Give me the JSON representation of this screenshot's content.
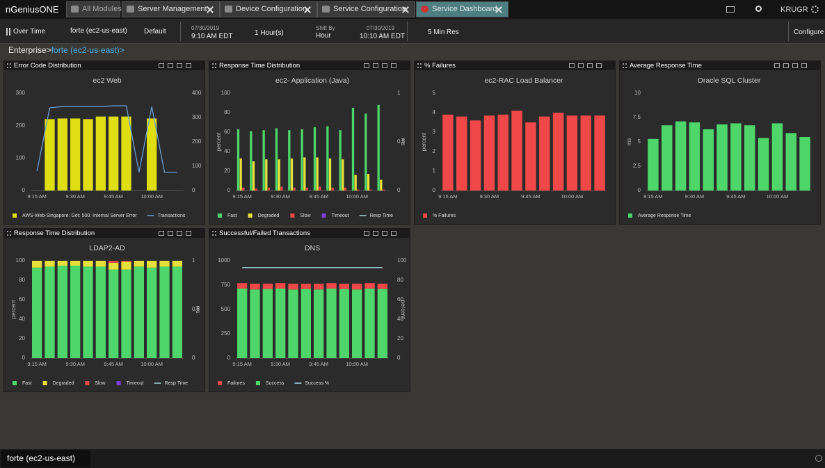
{
  "app": {
    "logo": "nGeniusONE",
    "tabs": [
      "All Modules",
      "Server Management",
      "Device Configuration",
      "Service Configuration",
      "Service Dashboard"
    ],
    "user": "KRUGR"
  },
  "toolbar": {
    "view": "Over Time",
    "scope": "forte (ec2-us-east)",
    "profile": "Default",
    "start_date": "07/30/2019",
    "start_time": "9:10 AM EDT",
    "duration": "1 Hour(s)",
    "shift_label": "Shift By",
    "shift": "Hour",
    "end_date": "07/30/2019",
    "end_time": "10:10 AM EDT",
    "resolution": "5 Min",
    "resolution_label": "Res",
    "configure": "Configure"
  },
  "breadcrumb": {
    "root": "Enterprise>",
    "current": "forte (ec2-us-east)>"
  },
  "panels": [
    {
      "title": "Error Code Distribution",
      "chart_data": {
        "type": "bar",
        "title": "ec2 Web",
        "categories": [
          "9:15 AM",
          null,
          null,
          "9:30 AM",
          null,
          null,
          "9:45 AM",
          null,
          null,
          "10:00 AM",
          null,
          null
        ],
        "series": [
          {
            "name": "AWS-Web-Singapore: Get: 500: Internal Server Error",
            "color": "#dede12",
            "values": [
              null,
              220,
              222,
              222,
              220,
              228,
              228,
              228,
              null,
              222,
              null,
              null
            ]
          },
          {
            "name": "Transactions",
            "color": "#6b9fd4",
            "axis": "y2",
            "values": [
              80,
              340,
              345,
              345,
              345,
              345,
              348,
              348,
              75,
              345,
              75,
              75
            ]
          }
        ],
        "ylim": [
          0,
          300
        ],
        "yticks": [
          0,
          100,
          200,
          300
        ],
        "y2lim": [
          0,
          400
        ],
        "y2ticks": [
          0,
          100,
          200,
          300,
          400
        ],
        "grid": false
      }
    },
    {
      "title": "Response Time Distribution",
      "chart_data": {
        "type": "groupedbar",
        "title": "ec2- Application (Java)",
        "ylabel": "percent",
        "y2label": "ms",
        "categories": [
          "9:15 AM",
          null,
          null,
          "9:30 AM",
          null,
          null,
          "9:45 AM",
          null,
          null,
          "10:00 AM",
          null,
          null
        ],
        "series": [
          {
            "name": "Fast",
            "color": "#4fd66b",
            "values": [
              63,
              61,
              62,
              64,
              62,
              63,
              65,
              66,
              62,
              85,
              79,
              88
            ]
          },
          {
            "name": "Degraded",
            "color": "#e8e03a",
            "values": [
              33,
              30,
              32,
              32,
              33,
              34,
              34,
              33,
              32,
              16,
              17,
              11
            ]
          },
          {
            "name": "Slow",
            "color": "#f04848",
            "values": [
              3,
              2,
              3,
              4,
              3,
              3,
              4,
              3,
              3,
              1,
              1,
              1
            ]
          },
          {
            "name": "Timeout",
            "color": "#7b3fe0",
            "values": [
              0,
              0,
              0,
              0,
              0,
              0,
              0,
              0,
              0,
              0,
              0,
              0
            ]
          },
          {
            "name": "Resp Time",
            "color": "#9fd3d3",
            "axis": "y2",
            "values": [
              null,
              null,
              null,
              null,
              null,
              null,
              null,
              null,
              null,
              null,
              null,
              null
            ]
          }
        ],
        "ylim": [
          0,
          100
        ],
        "yticks": [
          0,
          20,
          40,
          60,
          80,
          100
        ],
        "y2lim": [
          0,
          1
        ],
        "y2ticks": [
          0,
          0.5,
          1
        ],
        "grid": false
      }
    },
    {
      "title": "% Failures",
      "chart_data": {
        "type": "bar",
        "title": "ec2-RAC Load Balancer",
        "ylabel": "percent",
        "categories": [
          "9:15 AM",
          null,
          null,
          "9:30 AM",
          null,
          null,
          "9:45 AM",
          null,
          null,
          "10:00 AM",
          null,
          null
        ],
        "series": [
          {
            "name": "% Failures",
            "color": "#f04848",
            "values": [
              3.9,
              3.8,
              3.6,
              3.85,
              3.9,
              4.1,
              3.5,
              3.8,
              4.0,
              3.85,
              3.85,
              3.85
            ]
          }
        ],
        "ylim": [
          0,
          5
        ],
        "yticks": [
          0,
          1,
          2,
          3,
          4,
          5
        ],
        "grid": false
      }
    },
    {
      "title": "Average Response Time",
      "chart_data": {
        "type": "bar",
        "title": "Oracle SQL Cluster",
        "ylabel": "ms",
        "categories": [
          "9:15 AM",
          null,
          null,
          "9:30 AM",
          null,
          null,
          "9:45 AM",
          null,
          null,
          "10:00 AM",
          null,
          null
        ],
        "series": [
          {
            "name": "Average Response Time",
            "color": "#4fd66b",
            "values": [
              5.3,
              6.7,
              7.1,
              7.0,
              6.3,
              6.8,
              6.9,
              6.7,
              5.4,
              6.9,
              5.9,
              5.5
            ]
          }
        ],
        "ylim": [
          0,
          10
        ],
        "yticks": [
          0,
          2.5,
          5,
          7.5,
          10
        ],
        "grid": false
      }
    },
    {
      "title": "Response Time Distribution",
      "chart_data": {
        "type": "stackedbar",
        "title": "LDAP2-AD",
        "ylabel": "percent",
        "y2label": "ms",
        "categories": [
          "9:15 AM",
          null,
          null,
          "9:30 AM",
          null,
          null,
          "9:45 AM",
          null,
          null,
          "10:00 AM",
          null,
          null
        ],
        "series": [
          {
            "name": "Fast",
            "color": "#4fd66b",
            "values": [
              93,
              94,
              95,
              95,
              94,
              94,
              91,
              91,
              94,
              93,
              94,
              94
            ]
          },
          {
            "name": "Degraded",
            "color": "#e8e03a",
            "values": [
              7,
              6,
              5,
              5,
              6,
              6,
              7,
              8,
              6,
              7,
              6,
              6
            ]
          },
          {
            "name": "Slow",
            "color": "#f04848",
            "values": [
              0,
              0,
              0,
              0,
              0,
              0,
              2,
              1,
              0,
              0,
              0,
              0
            ]
          },
          {
            "name": "Timeout",
            "color": "#7b3fe0",
            "values": [
              0,
              0,
              0,
              0,
              0,
              0,
              0,
              0,
              0,
              0,
              0,
              0
            ]
          },
          {
            "name": "Resp Time",
            "color": "#9fd3d3",
            "axis": "y2",
            "values": [
              null,
              null,
              null,
              null,
              null,
              null,
              null,
              null,
              null,
              null,
              null,
              null
            ]
          }
        ],
        "ylim": [
          0,
          100
        ],
        "yticks": [
          0,
          20,
          40,
          60,
          80,
          100
        ],
        "y2lim": [
          0,
          1
        ],
        "y2ticks": [
          0,
          0.5,
          1
        ],
        "grid": false
      }
    },
    {
      "title": "Successful/Failed Transactions",
      "chart_data": {
        "type": "stackedbar",
        "title": "DNS",
        "y2label": "percent",
        "stack_reverse": true,
        "categories": [
          "9:15 AM",
          null,
          null,
          "9:30 AM",
          null,
          null,
          "9:45 AM",
          null,
          null,
          "10:00 AM",
          null,
          null
        ],
        "series": [
          {
            "name": "Failures",
            "color": "#f04848",
            "values": [
              55,
              60,
              55,
              55,
              60,
              55,
              60,
              55,
              55,
              60,
              55,
              55
            ]
          },
          {
            "name": "Success",
            "color": "#4fd66b",
            "values": [
              715,
              705,
              710,
              715,
              705,
              710,
              705,
              715,
              710,
              705,
              715,
              710
            ]
          },
          {
            "name": "Success %",
            "color": "#a8d8e8",
            "axis": "y2",
            "values": [
              93,
              93,
              93,
              93,
              93,
              93,
              93,
              93,
              93,
              93,
              93,
              93
            ]
          }
        ],
        "ylim": [
          0,
          1000
        ],
        "yticks": [
          0,
          250,
          500,
          750,
          1000
        ],
        "y2lim": [
          0,
          100
        ],
        "y2ticks": [
          0,
          20,
          40,
          60,
          80,
          100
        ],
        "grid": false
      }
    }
  ],
  "footer": {
    "tab": "forte (ec2-us-east)"
  }
}
